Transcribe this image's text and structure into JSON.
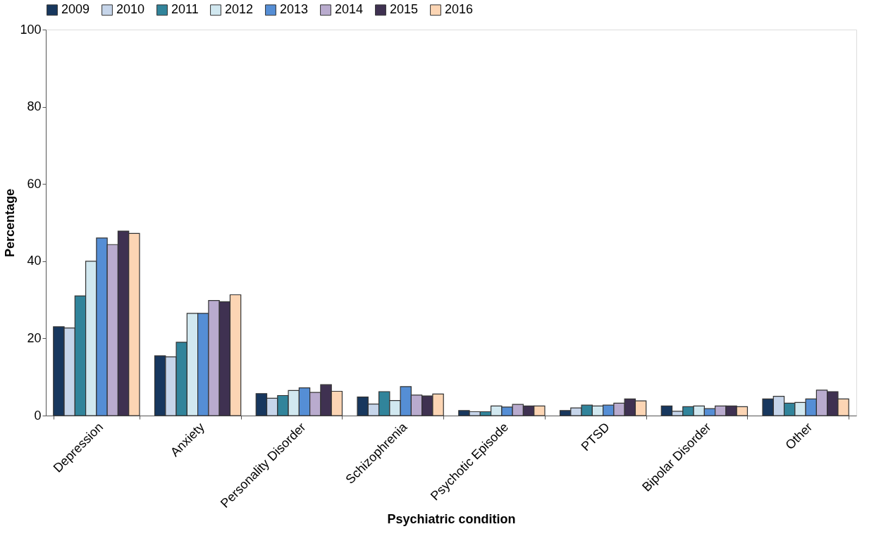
{
  "chart_data": {
    "type": "bar",
    "xlabel": "Psychiatric condition",
    "ylabel": "Percentage",
    "categories": [
      "Depression",
      "Anxiety",
      "Personality Disorder",
      "Schizophrenia",
      "Psychotic Episode",
      "PTSD",
      "Bipolar Disorder",
      "Other"
    ],
    "series": [
      {
        "name": "2009",
        "color": "#17375e",
        "values": [
          23,
          15.5,
          5.7,
          4.8,
          1.3,
          1.3,
          2.5,
          4.3
        ]
      },
      {
        "name": "2010",
        "color": "#c6d5ea",
        "values": [
          22.7,
          15.2,
          4.5,
          3,
          1,
          2,
          1.1,
          5
        ]
      },
      {
        "name": "2011",
        "color": "#31849b",
        "values": [
          31,
          19,
          5.2,
          6.2,
          1,
          2.7,
          2.3,
          3.2
        ]
      },
      {
        "name": "2012",
        "color": "#d1e8f0",
        "values": [
          40,
          26.5,
          6.5,
          3.9,
          2.5,
          2.5,
          2.5,
          3.4
        ]
      },
      {
        "name": "2013",
        "color": "#558ed5",
        "values": [
          46,
          26.5,
          7.2,
          7.5,
          2.2,
          2.7,
          1.8,
          4.3
        ]
      },
      {
        "name": "2014",
        "color": "#b9abce",
        "values": [
          44.3,
          29.8,
          6,
          5.3,
          2.9,
          3.2,
          2.5,
          6.6
        ]
      },
      {
        "name": "2015",
        "color": "#3f3151",
        "values": [
          47.8,
          29.5,
          8,
          5.1,
          2.5,
          4.3,
          2.5,
          6.2
        ]
      },
      {
        "name": "2016",
        "color": "#fcd5b4",
        "values": [
          47.2,
          31.3,
          6.3,
          5.6,
          2.5,
          3.8,
          2.3,
          4.3
        ]
      }
    ],
    "ylim": [
      0,
      100
    ],
    "yticks": [
      0,
      20,
      40,
      60,
      80,
      100
    ],
    "grid": false,
    "legend": "top"
  }
}
